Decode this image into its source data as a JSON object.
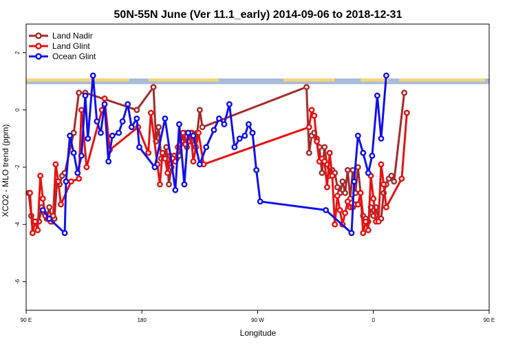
{
  "chart_data": {
    "type": "line",
    "title": "50N-55N June (Ver 11.1_early)   2014-09-06 to 2018-12-31",
    "xlabel": "Longitude",
    "ylabel": "XCO2 - MLO trend (ppm)",
    "xlim": [
      90,
      450
    ],
    "ylim": [
      -7,
      3
    ],
    "x_ticks": [
      {
        "value": 90,
        "label": "90 E"
      },
      {
        "value": 180,
        "label": "180"
      },
      {
        "value": 270,
        "label": "90 W"
      },
      {
        "value": 360,
        "label": "0"
      },
      {
        "value": 450,
        "label": "90 E"
      },
      {
        "value": 540,
        "label": "180"
      }
    ],
    "y_ticks": [
      -6,
      -4,
      -2,
      0,
      2
    ],
    "legend_position": "top-left",
    "land_ocean_band": {
      "y_range": [
        0.9,
        1.1
      ],
      "land_color": "#f6d37b",
      "ocean_color": "#a7bbd9"
    },
    "series": [
      {
        "name": "Land Nadir",
        "color": "#a52a2a",
        "points": [
          [
            92,
            -2.9
          ],
          [
            94,
            -3.7
          ],
          [
            96,
            -3.9
          ],
          [
            98,
            -3.9
          ],
          [
            100,
            -3.9
          ],
          [
            102,
            -3.4
          ],
          [
            104,
            -3.6
          ],
          [
            106,
            -3.8
          ],
          [
            108,
            -3.4
          ],
          [
            110,
            -3.9
          ],
          [
            112,
            -3.8
          ],
          [
            114,
            -2.5
          ],
          [
            116,
            -2.6
          ],
          [
            118,
            -2.3
          ],
          [
            120,
            -2.2
          ],
          [
            127,
            -0.8
          ],
          [
            131,
            0.6
          ],
          [
            136,
            0.6
          ],
          [
            176,
            0.0
          ],
          [
            189,
            0.8
          ],
          [
            191,
            -1.1
          ],
          [
            193,
            -0.6
          ],
          [
            195,
            -1.7
          ],
          [
            197,
            -1.6
          ],
          [
            199,
            -1.3
          ],
          [
            201,
            -2.6
          ],
          [
            203,
            -2.0
          ],
          [
            205,
            -1.6
          ],
          [
            207,
            -1.7
          ],
          [
            209,
            -1.6
          ],
          [
            211,
            -1.1
          ],
          [
            213,
            -0.8
          ],
          [
            215,
            -1.3
          ],
          [
            217,
            -1.1
          ],
          [
            219,
            -0.8
          ],
          [
            221,
            -1.2
          ],
          [
            223,
            -0.8
          ],
          [
            225,
            0.0
          ],
          [
            227,
            -0.6
          ],
          [
            308,
            0.8
          ],
          [
            310,
            -1.5
          ],
          [
            312,
            -0.9
          ],
          [
            314,
            -0.8
          ],
          [
            316,
            -1.0
          ],
          [
            318,
            -1.3
          ],
          [
            320,
            -2.2
          ],
          [
            322,
            -1.3
          ],
          [
            324,
            -1.9
          ],
          [
            326,
            -2.3
          ],
          [
            328,
            -2.1
          ],
          [
            330,
            -2.2
          ],
          [
            332,
            -2.7
          ],
          [
            334,
            -2.9
          ],
          [
            336,
            -2.5
          ],
          [
            338,
            -2.9
          ],
          [
            340,
            -2.1
          ],
          [
            342,
            -3.1
          ],
          [
            344,
            -2.1
          ],
          [
            346,
            -2.9
          ],
          [
            348,
            -2.0
          ],
          [
            350,
            -2.9
          ],
          [
            352,
            -3.7
          ],
          [
            354,
            -3.8
          ],
          [
            356,
            -3.9
          ],
          [
            358,
            -3.4
          ],
          [
            360,
            -3.7
          ],
          [
            362,
            -3.4
          ],
          [
            364,
            -3.8
          ],
          [
            366,
            -3.8
          ],
          [
            368,
            -2.9
          ],
          [
            370,
            -2.6
          ],
          [
            372,
            -2.4
          ],
          [
            374,
            -2.3
          ],
          [
            376,
            -2.5
          ],
          [
            384,
            0.6
          ]
        ]
      },
      {
        "name": "Land Glint",
        "color": "#e81111",
        "points": [
          [
            93,
            -2.9
          ],
          [
            95,
            -4.3
          ],
          [
            97,
            -3.9
          ],
          [
            99,
            -4.2
          ],
          [
            101,
            -2.3
          ],
          [
            103,
            -3.1
          ],
          [
            105,
            -3.7
          ],
          [
            107,
            -3.8
          ],
          [
            109,
            -3.9
          ],
          [
            111,
            -3.7
          ],
          [
            113,
            -1.9
          ],
          [
            115,
            -2.5
          ],
          [
            117,
            -3.3
          ],
          [
            125,
            -2.5
          ],
          [
            131,
            -2.4
          ],
          [
            133,
            0.0
          ],
          [
            137,
            -2.0
          ],
          [
            149,
            0.0
          ],
          [
            151,
            0.4
          ],
          [
            155,
            -1.4
          ],
          [
            177,
            -0.6
          ],
          [
            185,
            -1.5
          ],
          [
            187,
            -0.1
          ],
          [
            192,
            -1.9
          ],
          [
            194,
            -2.6
          ],
          [
            196,
            -1.5
          ],
          [
            198,
            -1.7
          ],
          [
            200,
            -2.2
          ],
          [
            202,
            -1.6
          ],
          [
            204,
            -1.7
          ],
          [
            206,
            -1.8
          ],
          [
            208,
            -1.3
          ],
          [
            210,
            -1.2
          ],
          [
            212,
            -0.8
          ],
          [
            214,
            -1.2
          ],
          [
            216,
            -1.1
          ],
          [
            218,
            -0.8
          ],
          [
            220,
            -1.8
          ],
          [
            222,
            -1.3
          ],
          [
            224,
            -0.8
          ],
          [
            228,
            -1.9
          ],
          [
            310,
            -0.6
          ],
          [
            312,
            0.0
          ],
          [
            314,
            -0.2
          ],
          [
            316,
            -1.1
          ],
          [
            318,
            -1.8
          ],
          [
            320,
            -1.7
          ],
          [
            322,
            -1.8
          ],
          [
            324,
            -2.7
          ],
          [
            326,
            -1.5
          ],
          [
            328,
            -2.3
          ],
          [
            330,
            -4.0
          ],
          [
            332,
            -3.0
          ],
          [
            334,
            -3.5
          ],
          [
            336,
            -4.0
          ],
          [
            338,
            -3.6
          ],
          [
            340,
            -3.2
          ],
          [
            342,
            -3.4
          ],
          [
            344,
            -3.4
          ],
          [
            346,
            -3.3
          ],
          [
            348,
            -3.3
          ],
          [
            350,
            -2.9
          ],
          [
            352,
            -4.3
          ],
          [
            354,
            -3.9
          ],
          [
            356,
            -4.2
          ],
          [
            358,
            -2.3
          ],
          [
            360,
            -3.1
          ],
          [
            362,
            -3.9
          ],
          [
            364,
            -3.9
          ],
          [
            366,
            -1.9
          ],
          [
            368,
            -2.6
          ],
          [
            370,
            -3.4
          ],
          [
            382,
            -2.4
          ],
          [
            386,
            -0.1
          ]
        ]
      },
      {
        "name": "Ocean Glint",
        "color": "#1010ee",
        "points": [
          [
            103,
            -3.5
          ],
          [
            108,
            -3.8
          ],
          [
            120,
            -4.3
          ],
          [
            121,
            -2.5
          ],
          [
            124,
            -0.9
          ],
          [
            127,
            -1.5
          ],
          [
            130,
            -2.2
          ],
          [
            133,
            -1.6
          ],
          [
            136,
            0.5
          ],
          [
            138,
            -1.0
          ],
          [
            142,
            1.2
          ],
          [
            145,
            -0.4
          ],
          [
            148,
            -0.8
          ],
          [
            151,
            0.2
          ],
          [
            154,
            -1.8
          ],
          [
            157,
            -0.9
          ],
          [
            162,
            -0.8
          ],
          [
            165,
            -0.4
          ],
          [
            169,
            0.2
          ],
          [
            172,
            -0.6
          ],
          [
            176,
            -0.3
          ],
          [
            178,
            -1.3
          ],
          [
            190,
            -2.0
          ],
          [
            198,
            -0.3
          ],
          [
            206,
            -2.8
          ],
          [
            209,
            -0.5
          ],
          [
            213,
            -2.6
          ],
          [
            216,
            -0.8
          ],
          [
            220,
            -0.9
          ],
          [
            225,
            -1.9
          ],
          [
            230,
            -1.3
          ],
          [
            236,
            -0.7
          ],
          [
            240,
            -0.3
          ],
          [
            244,
            -0.5
          ],
          [
            248,
            0.2
          ],
          [
            252,
            -1.3
          ],
          [
            256,
            -1.0
          ],
          [
            260,
            -0.9
          ],
          [
            263,
            -0.5
          ],
          [
            266,
            -0.8
          ],
          [
            269,
            -2.1
          ],
          [
            272,
            -3.2
          ],
          [
            323,
            -3.5
          ],
          [
            343,
            -4.3
          ],
          [
            345,
            -2.5
          ],
          [
            348,
            -0.9
          ],
          [
            352,
            -1.5
          ],
          [
            356,
            -2.2
          ],
          [
            359,
            -1.6
          ],
          [
            363,
            0.5
          ],
          [
            366,
            -1.0
          ],
          [
            370,
            1.2
          ]
        ]
      }
    ]
  }
}
